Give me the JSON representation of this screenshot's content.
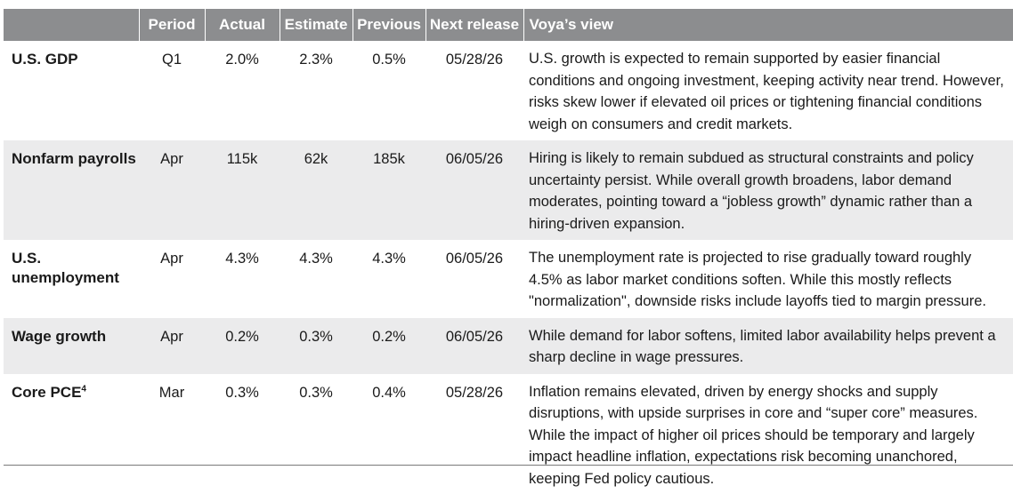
{
  "table": {
    "headers": {
      "indicator": "",
      "period": "Period",
      "actual": "Actual",
      "estimate": "Estimate",
      "previous": "Previous",
      "next_release": "Next release",
      "view": "Voya’s view"
    },
    "rows": [
      {
        "indicator": "U.S. GDP",
        "indicator_sup": "",
        "period": "Q1",
        "actual": "2.0%",
        "estimate": "2.3%",
        "previous": "0.5%",
        "next_release": "05/28/26",
        "view": "U.S. growth is expected to remain supported by easier financial conditions and ongoing investment, keeping activity near trend. However, risks skew lower if elevated oil prices or tightening financial conditions weigh on consumers and credit markets."
      },
      {
        "indicator": "Nonfarm payrolls",
        "indicator_sup": "",
        "period": "Apr",
        "actual": "115k",
        "estimate": "62k",
        "previous": "185k",
        "next_release": "06/05/26",
        "view": "Hiring is likely to remain subdued as structural constraints and policy uncertainty persist. While overall growth broadens, labor demand moderates, pointing toward a “jobless growth” dynamic rather than a hiring-driven expansion."
      },
      {
        "indicator": "U.S. unemployment",
        "indicator_sup": "",
        "period": "Apr",
        "actual": "4.3%",
        "estimate": "4.3%",
        "previous": "4.3%",
        "next_release": "06/05/26",
        "view": "The unemployment rate is projected to rise gradually toward roughly 4.5% as labor market conditions soften. While this mostly reflects \"normalization\", downside risks include layoffs tied to margin pressure."
      },
      {
        "indicator": "Wage growth",
        "indicator_sup": "",
        "period": "Apr",
        "actual": "0.2%",
        "estimate": "0.3%",
        "previous": "0.2%",
        "next_release": "06/05/26",
        "view": "While demand for labor softens, limited labor availability helps prevent a sharp decline in wage pressures."
      },
      {
        "indicator": "Core PCE",
        "indicator_sup": "4",
        "period": "Mar",
        "actual": "0.3%",
        "estimate": "0.3%",
        "previous": "0.4%",
        "next_release": "05/28/26",
        "view": "Inflation remains elevated, driven by energy shocks and supply disruptions, with upside surprises in core and “super core” measures. While the impact of higher oil prices should be temporary and largely impact headline inflation, expectations risk becoming unanchored, keeping Fed policy cautious."
      }
    ]
  }
}
